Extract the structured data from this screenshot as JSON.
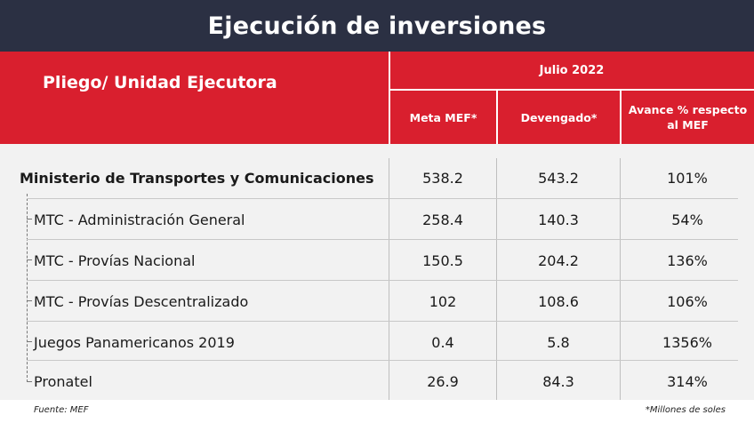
{
  "title": "Ejecución de inversiones",
  "header": {
    "row_label": "Pliego/ Unidad Ejecutora",
    "period": "Julio 2022",
    "columns": [
      "Meta MEF*",
      "Devengado*",
      "Avance % respecto al MEF"
    ]
  },
  "rows": [
    {
      "name": "Ministerio de Transportes y Comunicaciones",
      "meta": "538.2",
      "devengado": "543.2",
      "avance": "101%"
    },
    {
      "name": "MTC - Administración General",
      "meta": "258.4",
      "devengado": "140.3",
      "avance": "54%"
    },
    {
      "name": "MTC - Provías Nacional",
      "meta": "150.5",
      "devengado": "204.2",
      "avance": "136%"
    },
    {
      "name": "MTC - Provías Descentralizado",
      "meta": "102",
      "devengado": "108.6",
      "avance": "106%"
    },
    {
      "name": "Juegos Panamericanos 2019",
      "meta": "0.4",
      "devengado": "5.8",
      "avance": "1356%"
    },
    {
      "name": "Pronatel",
      "meta": "26.9",
      "devengado": "84.3",
      "avance": "314%"
    }
  ],
  "footer": {
    "source": "Fuente: MEF",
    "note": "*Millones de soles"
  }
}
